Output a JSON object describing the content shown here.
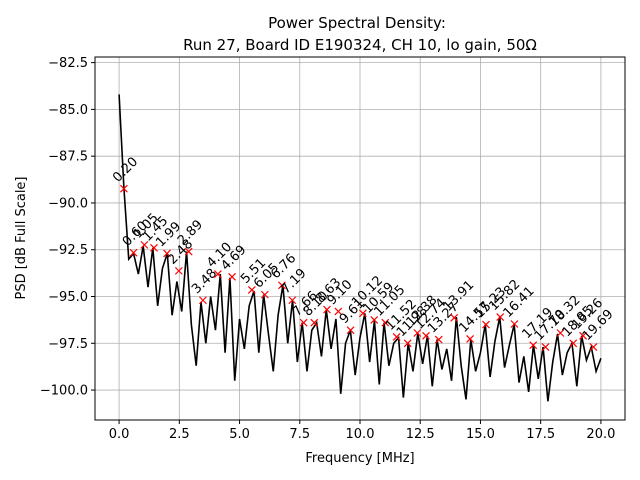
{
  "chart_data": {
    "type": "line",
    "title": "Power Spectral Density:",
    "subtitle": "Run 27, Board ID E190324, CH 10, lo gain, 50Ω",
    "x_label": "Frequency [MHz]",
    "y_label": "PSD [dB Full Scale]",
    "xlim": [
      -1,
      21
    ],
    "ylim": [
      -101.6,
      -82.2
    ],
    "xticks": [
      {
        "value": 0,
        "label": "0.0"
      },
      2.5,
      {
        "value": 5,
        "label": "5.0"
      },
      7.5,
      {
        "value": 10,
        "label": "10.0"
      },
      12.5,
      {
        "value": 15,
        "label": "15.0"
      },
      17.5,
      {
        "value": 20,
        "label": "20.0"
      }
    ],
    "yticks": [
      {
        "value": -100,
        "label": "−100.0"
      },
      {
        "value": -97.5,
        "label": "−97.5"
      },
      {
        "value": -95,
        "label": "−95.0"
      },
      {
        "value": -92.5,
        "label": "−92.5"
      },
      {
        "value": -90,
        "label": "−90.0"
      },
      {
        "value": -87.5,
        "label": "−87.5"
      },
      {
        "value": -85,
        "label": "−85.0"
      },
      {
        "value": -82.5,
        "label": "−82.5"
      }
    ],
    "grid": true,
    "x": [
      0,
      0.2,
      0.4,
      0.6,
      0.8,
      1,
      1.2,
      1.4,
      1.6,
      1.8,
      2,
      2.2,
      2.4,
      2.6,
      2.8,
      3,
      3.2,
      3.4,
      3.6,
      3.8,
      4,
      4.2,
      4.4,
      4.6,
      4.8,
      5,
      5.2,
      5.4,
      5.6,
      5.8,
      6,
      6.2,
      6.4,
      6.6,
      6.8,
      7,
      7.2,
      7.4,
      7.6,
      7.8,
      8,
      8.2,
      8.4,
      8.6,
      8.8,
      9,
      9.2,
      9.4,
      9.6,
      9.8,
      10,
      10.2,
      10.4,
      10.6,
      10.8,
      11,
      11.2,
      11.4,
      11.6,
      11.8,
      12,
      12.2,
      12.4,
      12.6,
      12.8,
      13,
      13.2,
      13.4,
      13.6,
      13.8,
      14,
      14.2,
      14.4,
      14.6,
      14.8,
      15,
      15.2,
      15.4,
      15.6,
      15.8,
      16,
      16.2,
      16.4,
      16.6,
      16.8,
      17,
      17.2,
      17.4,
      17.6,
      17.8,
      18,
      18.2,
      18.4,
      18.6,
      18.8,
      19,
      19.2,
      19.4,
      19.6,
      19.8,
      20
    ],
    "series": [
      {
        "color": "#000000",
        "values": [
          -84.2,
          -89.2,
          -93.0,
          -92.7,
          -93.8,
          -92.3,
          -94.5,
          -92.4,
          -95.5,
          -93.5,
          -92.7,
          -96.0,
          -94.2,
          -95.8,
          -92.6,
          -96.5,
          -98.7,
          -95.3,
          -97.5,
          -95.0,
          -96.8,
          -93.8,
          -98.0,
          -94.0,
          -99.5,
          -96.2,
          -97.8,
          -95.5,
          -94.7,
          -98.0,
          -94.9,
          -97.0,
          -99.0,
          -96.0,
          -94.4,
          -97.5,
          -95.2,
          -98.5,
          -96.4,
          -99.0,
          -96.8,
          -96.4,
          -98.2,
          -95.7,
          -97.8,
          -96.2,
          -100.2,
          -97.5,
          -96.8,
          -99.2,
          -97.2,
          -95.9,
          -98.5,
          -96.3,
          -99.7,
          -96.4,
          -98.7,
          -97.5,
          -97.2,
          -100.4,
          -97.5,
          -99.0,
          -96.95,
          -98.6,
          -97.1,
          -99.8,
          -97.3,
          -98.9,
          -97.8,
          -99.5,
          -96.1,
          -98.7,
          -100.5,
          -97.3,
          -99.0,
          -98.0,
          -96.5,
          -99.3,
          -97.4,
          -96.1,
          -98.8,
          -97.6,
          -96.5,
          -99.6,
          -98.2,
          -100.1,
          -97.6,
          -99.4,
          -97.7,
          -100.6,
          -98.5,
          -97.0,
          -99.2,
          -98.0,
          -97.5,
          -99.8,
          -97.1,
          -98.4,
          -97.7,
          -99.0,
          -98.3
        ]
      }
    ],
    "peaks": {
      "color": "#ff0000",
      "x": [
        0.2,
        0.6,
        1.05,
        1.45,
        1.99,
        2.48,
        2.89,
        3.48,
        4.1,
        4.69,
        5.51,
        6.05,
        6.76,
        7.19,
        7.66,
        8.1,
        8.63,
        9.1,
        9.61,
        10.12,
        10.59,
        11.05,
        11.52,
        11.98,
        12.38,
        12.74,
        13.27,
        13.91,
        14.57,
        15.23,
        15.82,
        16.41,
        17.19,
        17.7,
        18.32,
        18.85,
        19.26,
        19.69
      ],
      "values": [
        -89.24,
        -92.66,
        -92.24,
        -92.4,
        -92.7,
        -93.63,
        -92.6,
        -95.2,
        -93.8,
        -93.95,
        -94.65,
        -94.9,
        -94.4,
        -95.2,
        -96.4,
        -96.4,
        -95.7,
        -95.8,
        -96.8,
        -95.9,
        -96.25,
        -96.4,
        -97.16,
        -97.5,
        -96.95,
        -97.1,
        -97.3,
        -96.14,
        -97.27,
        -96.5,
        -96.1,
        -96.47,
        -97.6,
        -97.7,
        -96.95,
        -97.5,
        -97.1,
        -97.7
      ],
      "labels": [
        "0.20",
        "0.60",
        "1.05",
        "1.45",
        "1.99",
        "2.48",
        "2.89",
        "3.48",
        "4.10",
        "4.69",
        "5.51",
        "6.05",
        "6.76",
        "7.19",
        "7.66",
        "8.10",
        "8.63",
        "9.10",
        "9.61",
        "10.12",
        "10.59",
        "11.05",
        "11.52",
        "11.98",
        "12.38",
        "12.74",
        "13.27",
        "13.91",
        "14.57",
        "15.23",
        "15.82",
        "16.41",
        "17.19",
        "17.70",
        "18.32",
        "18.85",
        "19.26",
        "19.69"
      ]
    }
  }
}
